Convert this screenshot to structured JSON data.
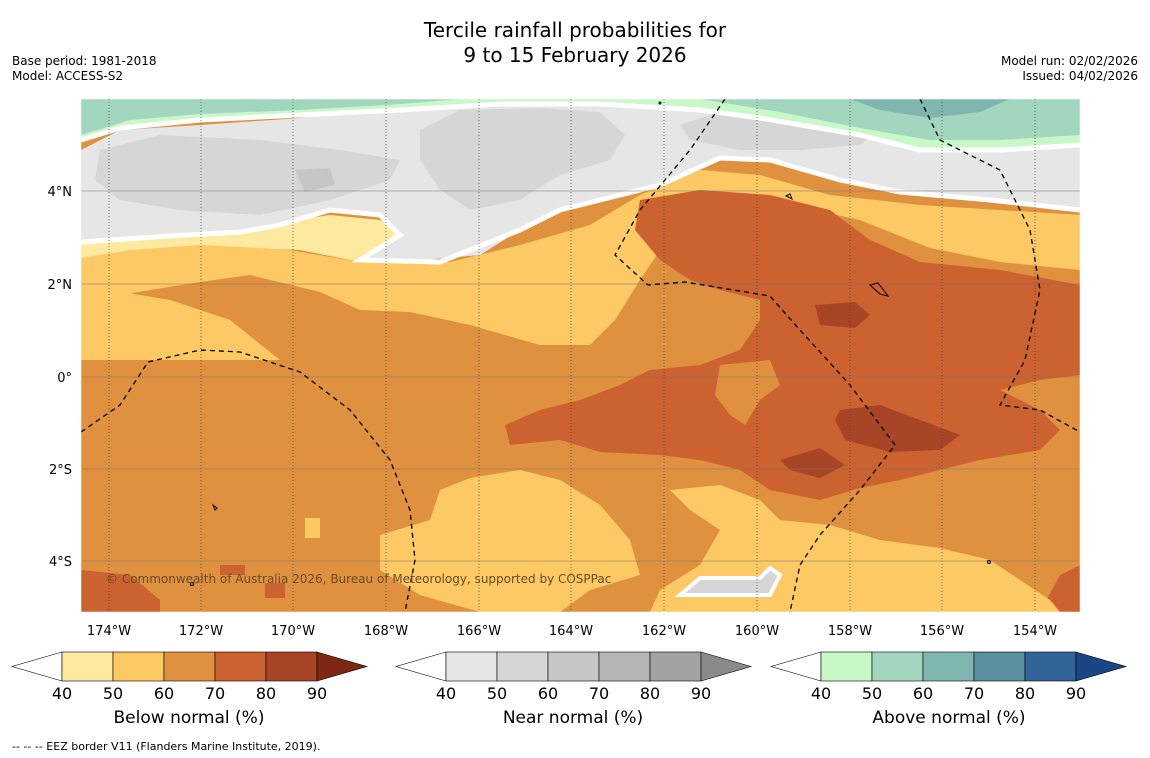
{
  "title": {
    "line1": "Tercile rainfall probabilities for",
    "line2": "9 to 15 February 2026"
  },
  "meta_left": {
    "base_period": "Base period: 1981-2018",
    "model": "Model: ACCESS-S2"
  },
  "meta_right": {
    "model_run": "Model run: 02/02/2026",
    "issued": "Issued: 04/02/2026"
  },
  "map": {
    "lon_labels": [
      "174°W",
      "172°W",
      "170°W",
      "168°W",
      "166°W",
      "164°W",
      "162°W",
      "160°W",
      "158°W",
      "156°W",
      "154°W"
    ],
    "lat_labels": [
      "4°N",
      "2°N",
      "0°",
      "2°S",
      "4°S"
    ],
    "copyright": "© Commonwealth of Australia 2026, Bureau of Meteorology, supported by COSPPac"
  },
  "colorbars": {
    "ticks": [
      "40",
      "50",
      "60",
      "70",
      "80",
      "90"
    ],
    "below": {
      "label": "Below normal (%)",
      "colors": [
        "#fde9a0",
        "#fdc964",
        "#e0913f",
        "#cc622f",
        "#a84527",
        "#7e2712"
      ]
    },
    "near": {
      "label": "Near normal (%)",
      "colors": [
        "#e6e6e6",
        "#d6d6d6",
        "#c6c6c6",
        "#b5b5b5",
        "#a3a3a3",
        "#8a8a8a"
      ]
    },
    "above": {
      "label": "Above normal (%)",
      "colors": [
        "#c8f7c8",
        "#a2d6bf",
        "#7fb6b0",
        "#5a8fa0",
        "#336497",
        "#1a4784"
      ]
    }
  },
  "footer": "--  --  -- EEZ border V11 (Flanders Marine Institute, 2019)."
}
